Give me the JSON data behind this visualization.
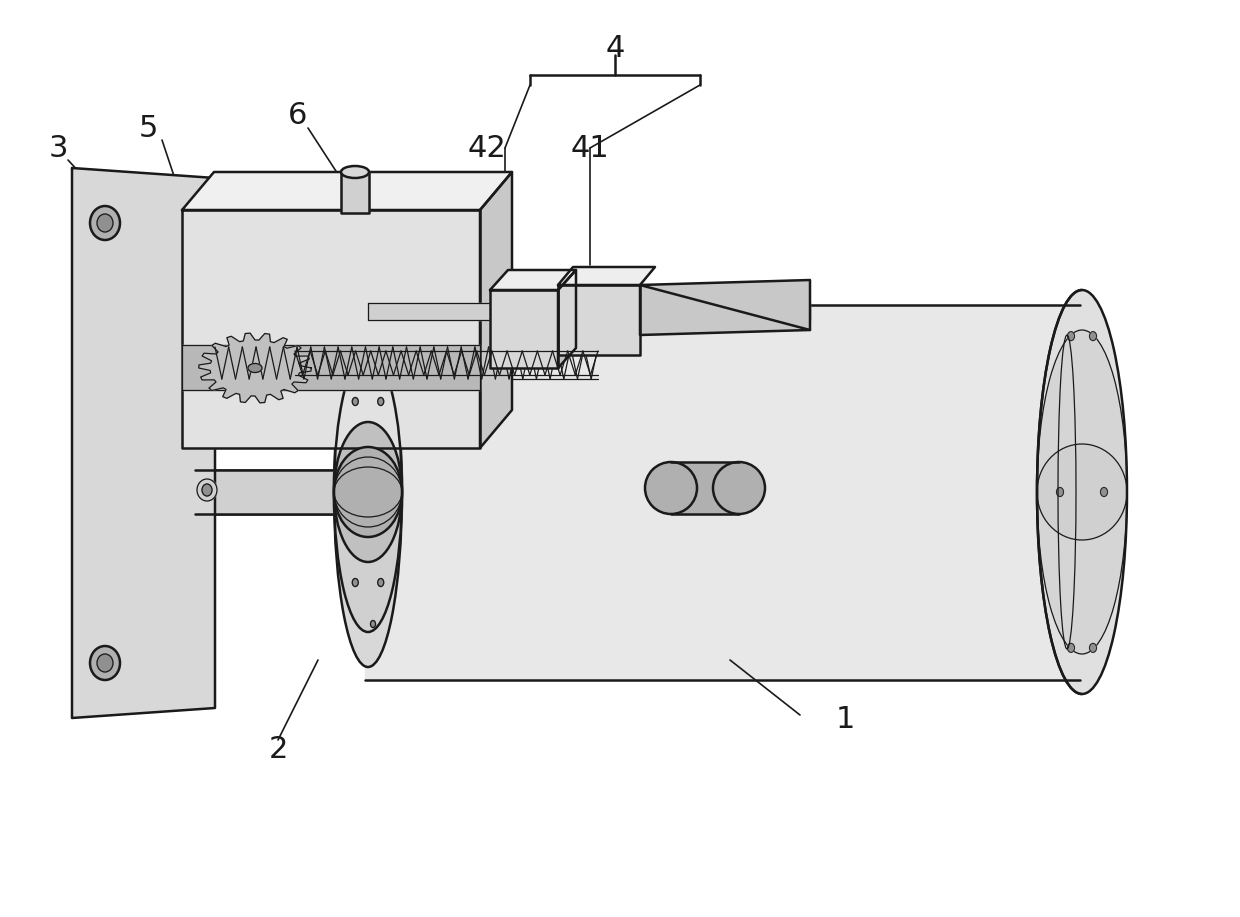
{
  "background_color": "#ffffff",
  "line_color": "#1a1a1a",
  "lw_main": 1.8,
  "lw_thin": 0.9,
  "lw_leader": 1.2,
  "label_fontsize": 22,
  "figsize": [
    12.4,
    9.17
  ],
  "dpi": 100,
  "gray_light": "#e8e8e8",
  "gray_mid": "#d0d0d0",
  "gray_dark": "#b0b0b0",
  "gray_darker": "#909090",
  "white": "#f5f5f5"
}
